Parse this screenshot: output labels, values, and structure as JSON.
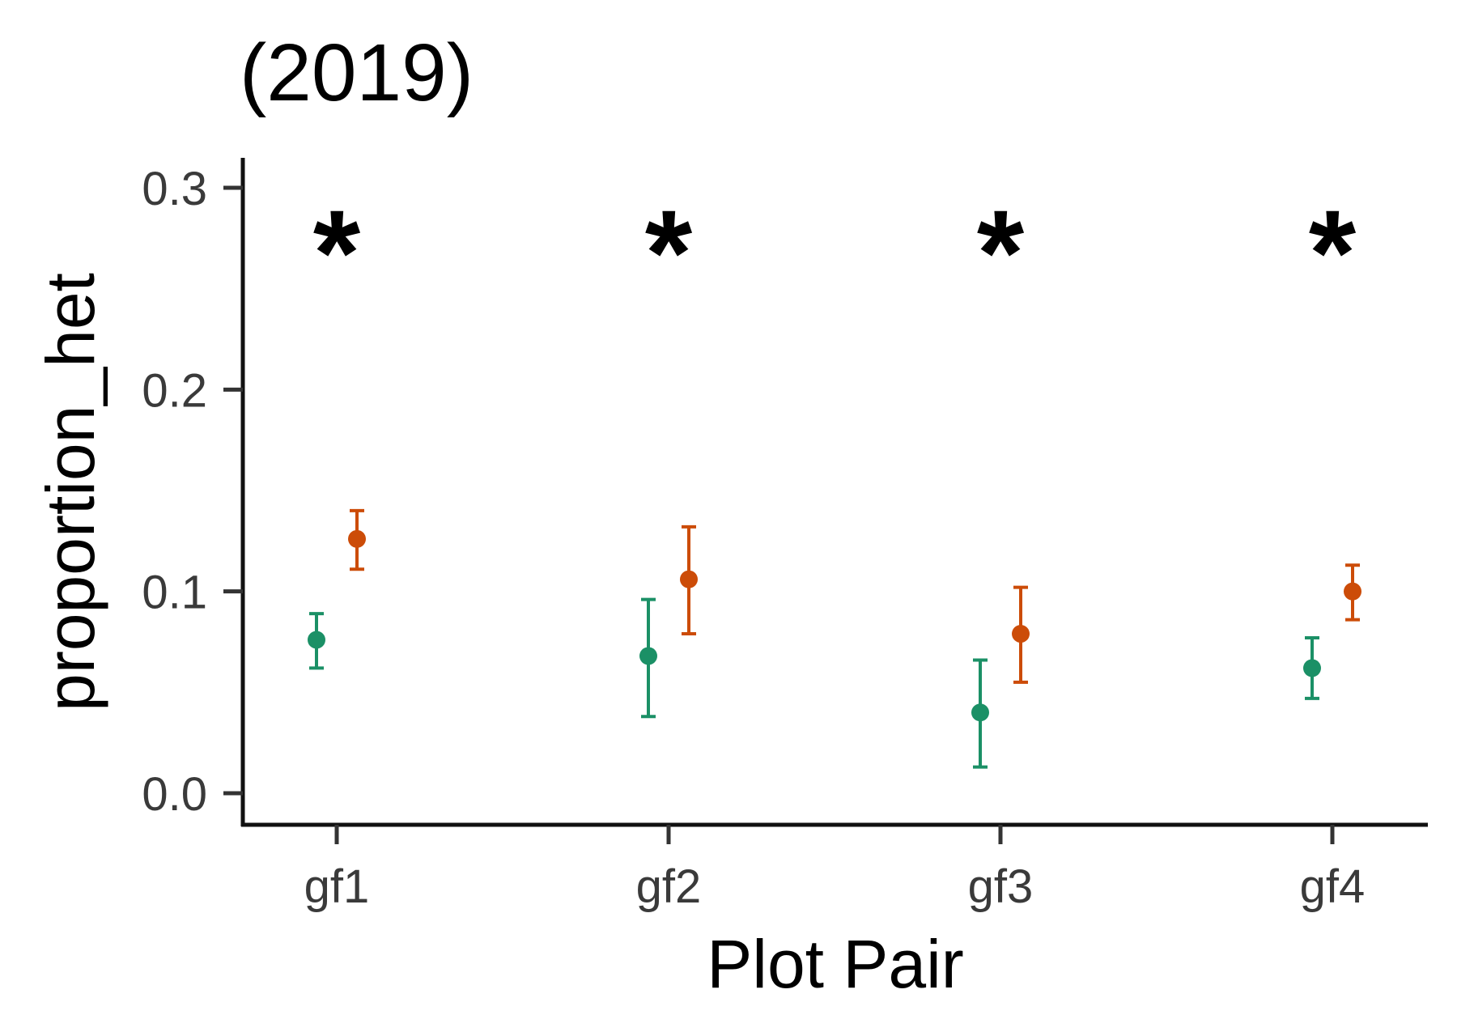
{
  "chart_data": {
    "type": "scatter",
    "title": "(2019)",
    "xlabel": "Plot Pair",
    "ylabel": "proportion_het",
    "categories": [
      "gf1",
      "gf2",
      "gf3",
      "gf4"
    ],
    "ylim": [
      -0.015,
      0.315
    ],
    "yticks": [
      0.0,
      0.1,
      0.2,
      0.3
    ],
    "ytick_labels": [
      "0.0",
      "0.1",
      "0.2",
      "0.3"
    ],
    "grid": false,
    "legend": "none",
    "annotations": [
      "*",
      "*",
      "*",
      "*"
    ],
    "series": [
      {
        "color": "#1b9066",
        "values": [
          0.076,
          0.068,
          0.04,
          0.062
        ],
        "lower": [
          0.062,
          0.038,
          0.013,
          0.047
        ],
        "upper": [
          0.089,
          0.096,
          0.066,
          0.077
        ]
      },
      {
        "color": "#cc4c08",
        "values": [
          0.126,
          0.106,
          0.079,
          0.1
        ],
        "lower": [
          0.111,
          0.079,
          0.055,
          0.086
        ],
        "upper": [
          0.14,
          0.132,
          0.102,
          0.113
        ]
      }
    ]
  }
}
